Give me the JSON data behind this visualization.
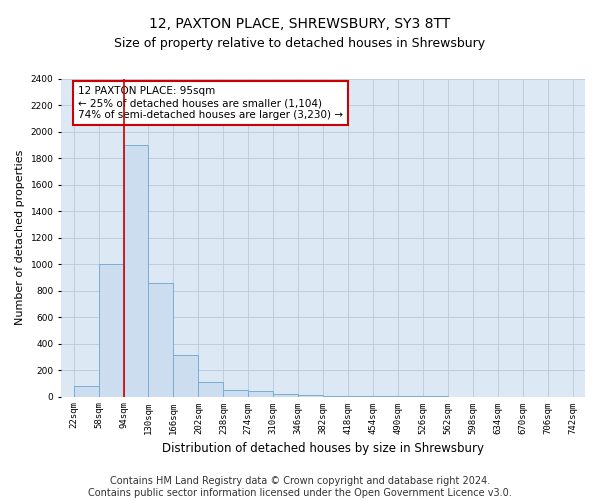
{
  "title": "12, PAXTON PLACE, SHREWSBURY, SY3 8TT",
  "subtitle": "Size of property relative to detached houses in Shrewsbury",
  "xlabel": "Distribution of detached houses by size in Shrewsbury",
  "ylabel": "Number of detached properties",
  "bar_color": "#ccddf0",
  "bar_edgecolor": "#7aadd4",
  "bar_linewidth": 0.7,
  "vline_x": 95,
  "vline_color": "#cc0000",
  "vline_linewidth": 1.2,
  "annotation_text": "12 PAXTON PLACE: 95sqm\n← 25% of detached houses are smaller (1,104)\n74% of semi-detached houses are larger (3,230) →",
  "annotation_box_color": "#cc0000",
  "footer_text": "Contains HM Land Registry data © Crown copyright and database right 2024.\nContains public sector information licensed under the Open Government Licence v3.0.",
  "footer_fontsize": 7,
  "bins_left": [
    22,
    58,
    94,
    130,
    166,
    202,
    238,
    274,
    310,
    346,
    382,
    418,
    454,
    490,
    526,
    562,
    598,
    634,
    670,
    706
  ],
  "bin_labels": [
    "22sqm",
    "58sqm",
    "94sqm",
    "130sqm",
    "166sqm",
    "202sqm",
    "238sqm",
    "274sqm",
    "310sqm",
    "346sqm",
    "382sqm",
    "418sqm",
    "454sqm",
    "490sqm",
    "526sqm",
    "562sqm",
    "598sqm",
    "634sqm",
    "670sqm",
    "706sqm",
    "742sqm"
  ],
  "values": [
    80,
    1000,
    1900,
    860,
    310,
    110,
    50,
    40,
    20,
    15,
    5,
    3,
    2,
    1,
    1,
    0,
    0,
    0,
    0,
    0
  ],
  "bin_width": 36,
  "ylim": [
    0,
    2400
  ],
  "yticks": [
    0,
    200,
    400,
    600,
    800,
    1000,
    1200,
    1400,
    1600,
    1800,
    2000,
    2200,
    2400
  ],
  "xlim_left": 4,
  "xlim_right": 760,
  "xtick_positions": [
    22,
    58,
    94,
    130,
    166,
    202,
    238,
    274,
    310,
    346,
    382,
    418,
    454,
    490,
    526,
    562,
    598,
    634,
    670,
    706,
    742
  ],
  "figsize": [
    6.0,
    5.0
  ],
  "dpi": 100,
  "title_fontsize": 10,
  "subtitle_fontsize": 9,
  "xlabel_fontsize": 8.5,
  "ylabel_fontsize": 8,
  "tick_fontsize": 6.5,
  "bg_color": "#ffffff",
  "plot_bg_color": "#dde8f5",
  "grid_color": "#b8c8dc",
  "annotation_fontsize": 7.5
}
